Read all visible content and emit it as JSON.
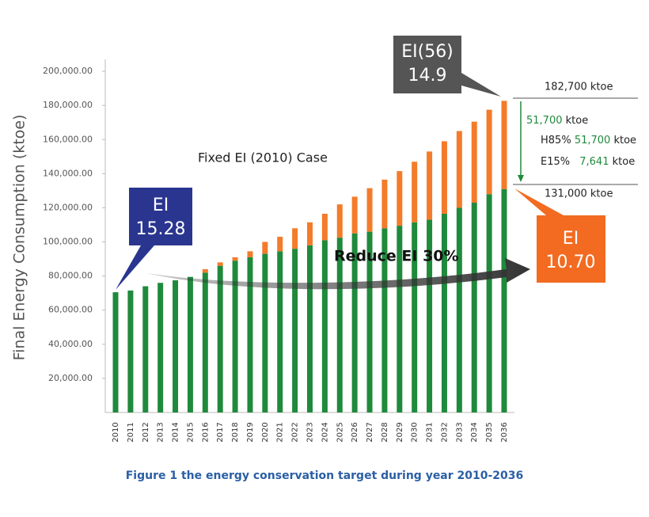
{
  "chart_data": {
    "type": "stacked_bar",
    "y_label": "Final Energy Consumption (ktoe)",
    "caption": "Figure 1 the energy conservation target during year 2010-2036",
    "categories": [
      "2010",
      "2011",
      "2012",
      "2013",
      "2014",
      "2015",
      "2016",
      "2017",
      "2018",
      "2019",
      "2020",
      "2021",
      "2022",
      "2023",
      "2024",
      "2025",
      "2026",
      "2027",
      "2028",
      "2029",
      "2030",
      "2031",
      "2032",
      "2033",
      "2034",
      "2035",
      "2036"
    ],
    "series": [
      {
        "color": "#1f8a3c",
        "values": [
          70500,
          71500,
          74000,
          76000,
          77500,
          79500,
          82000,
          86000,
          89000,
          91000,
          93000,
          94500,
          96000,
          98000,
          101000,
          102500,
          105000,
          106000,
          108000,
          109500,
          111500,
          113000,
          116500,
          120000,
          123000,
          128000,
          131000
        ]
      },
      {
        "color": "#f47b2a",
        "values": [
          0,
          0,
          0,
          0,
          0,
          0,
          2000,
          2000,
          2000,
          3500,
          7000,
          8500,
          12000,
          13500,
          15500,
          19500,
          21500,
          25500,
          28500,
          32000,
          35500,
          40000,
          42500,
          45000,
          47500,
          49500,
          51700
        ]
      }
    ],
    "ylim": [
      0,
      207000
    ],
    "yticks": [
      {
        "value": 20000,
        "label": "20,000.00"
      },
      {
        "value": 40000,
        "label": "40,000.00"
      },
      {
        "value": 60000,
        "label": "60,000.00"
      },
      {
        "value": 80000,
        "label": "80,000.00"
      },
      {
        "value": 100000,
        "label": "100,000.00"
      },
      {
        "value": 120000,
        "label": "120,000.00"
      },
      {
        "value": 140000,
        "label": "140,000.00"
      },
      {
        "value": 160000,
        "label": "160,000.00"
      },
      {
        "value": 180000,
        "label": "180,000.00"
      },
      {
        "value": 200000,
        "label": "200,000.00"
      }
    ],
    "grid": false,
    "annotations": {
      "fixed_case": "Fixed EI (2010) Case",
      "reduce": "Reduce EI 30%",
      "callouts": [
        {
          "line1": "EI",
          "line2": "15.28"
        },
        {
          "line1": "EI(56)",
          "line2": "14.9"
        },
        {
          "line1": "EI",
          "line2": "10.70"
        }
      ],
      "total": "182,700 ktoe",
      "saving": [
        "51,700",
        "ktoe"
      ],
      "h85": [
        "H85%",
        "51,700",
        "ktoe"
      ],
      "e15": [
        "E15%",
        "7,641",
        "ktoe"
      ],
      "base": "131,000 ktoe"
    }
  }
}
